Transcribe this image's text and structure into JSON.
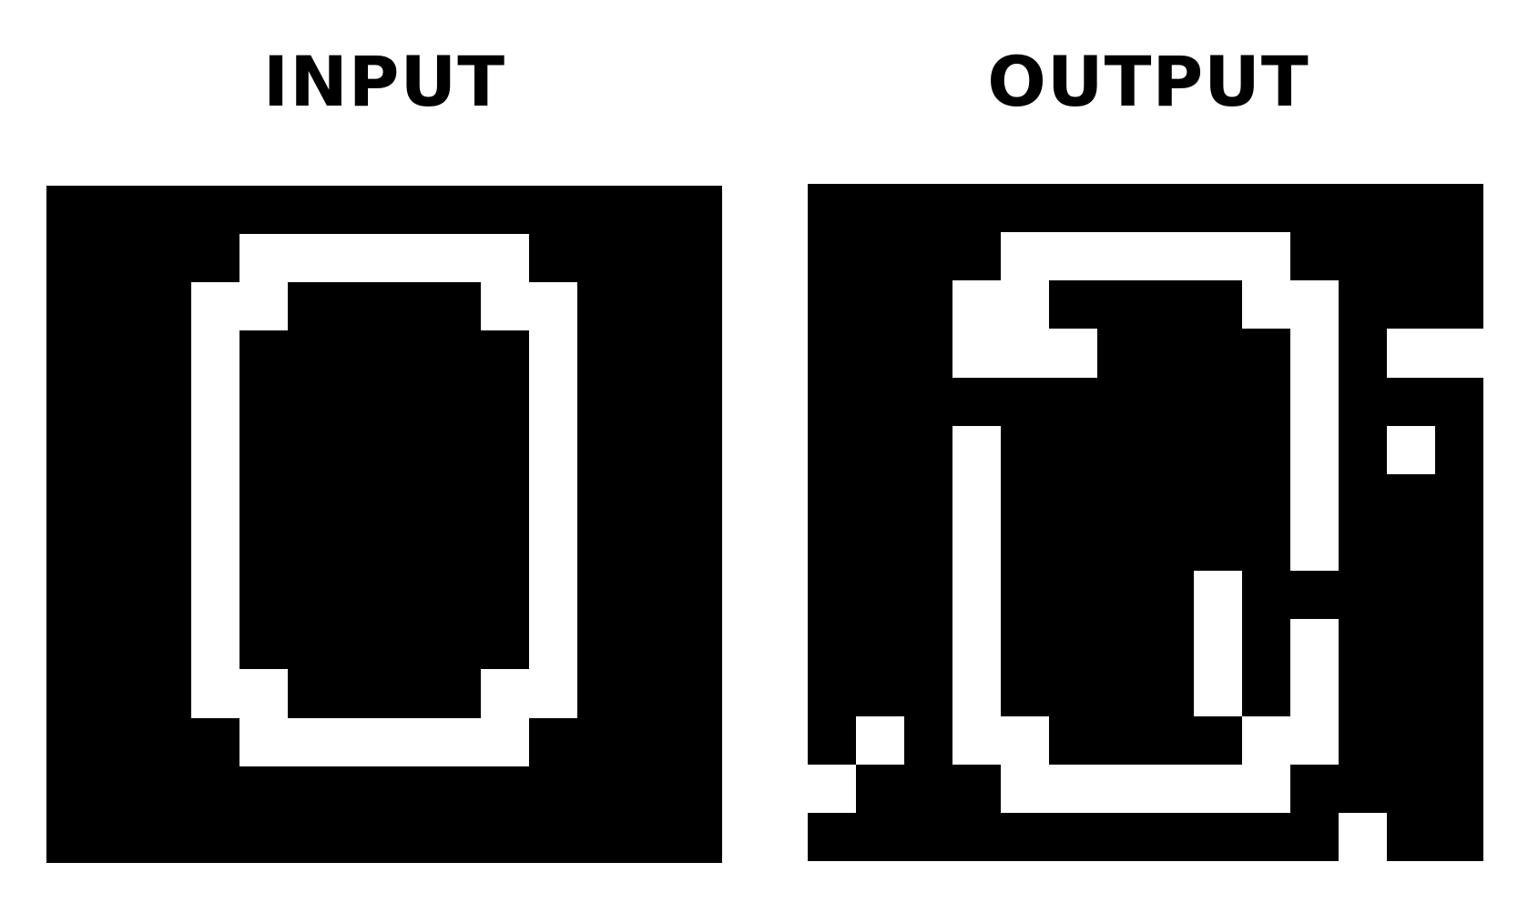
{
  "titles": {
    "input": "INPUT",
    "output": "OUTPUT"
  },
  "palette": {
    "0": "#000000",
    "1": "#ffffff"
  },
  "grids": {
    "input": [
      "00000000000000",
      "00001111110000",
      "00011000011000",
      "00010000001000",
      "00010000001000",
      "00010000001000",
      "00010000001000",
      "00010000001000",
      "00010000001000",
      "00010000001000",
      "00011000011000",
      "00001111110000",
      "00000000000000",
      "00000000000000"
    ],
    "output": [
      "00000000000000",
      "00001111110000",
      "00011000011000",
      "00011100001011",
      "00000000001000",
      "00010000001010",
      "00010000001000",
      "00010000001000",
      "00010000100000",
      "00010000101000",
      "00010000101000",
      "01011000011000",
      "10001111110000",
      "00000000000100"
    ]
  }
}
